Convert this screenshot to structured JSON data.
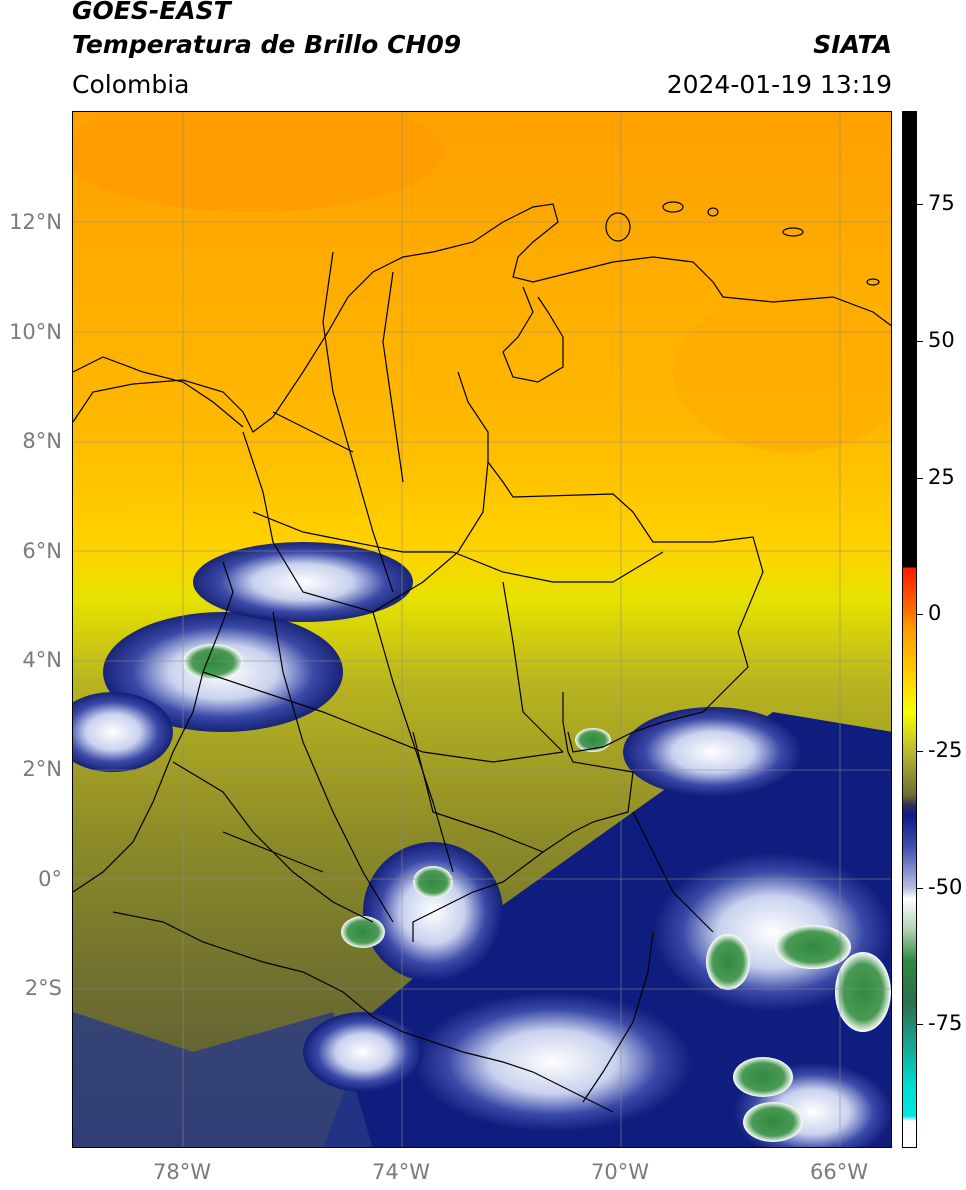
{
  "header": {
    "satellite": "GOES-EAST",
    "product": "Temperatura de Brillo CH09",
    "region": "Colombia",
    "agency": "SIATA",
    "datetime": "2024-01-19 13:19"
  },
  "map": {
    "lat_ticks": [
      "12°N",
      "10°N",
      "8°N",
      "6°N",
      "4°N",
      "2°N",
      "0°",
      "2°S"
    ],
    "lon_ticks": [
      "78°W",
      "74°W",
      "70°W",
      "66°W"
    ],
    "extent": {
      "lon_min": -80,
      "lon_max": -65,
      "lat_min": -4.9,
      "lat_max": 14
    }
  },
  "colorbar": {
    "ticks": [
      "75",
      "50",
      "25",
      "0",
      "-25",
      "-50",
      "-75"
    ],
    "range": [
      -95,
      90
    ],
    "colors": {
      "black": "#000000",
      "red": "#ff1a00",
      "orange": "#ff9c00",
      "yellow": "#f6ff00",
      "olive": "#8a8a25",
      "navy": "#0c1a8c",
      "white": "#ffffff",
      "green": "#2f8a3c",
      "teal": "#00dcd0"
    }
  }
}
